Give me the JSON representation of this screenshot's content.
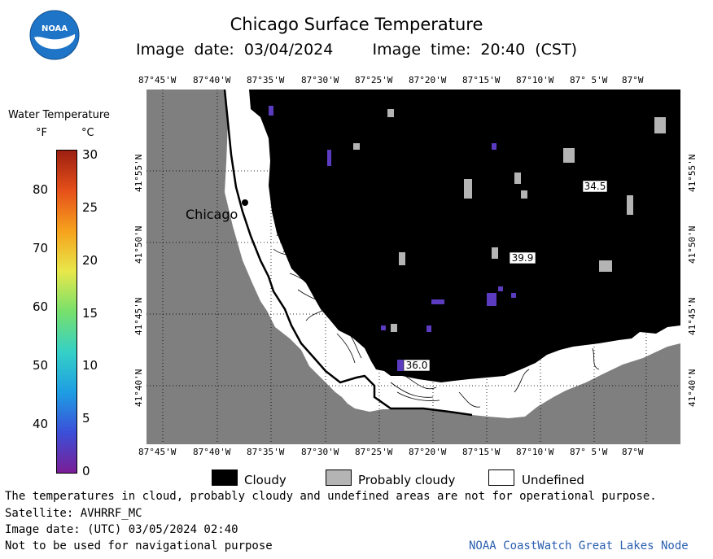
{
  "header": {
    "title": "Chicago Surface Temperature",
    "image_date": "Image date: 03/04/2024",
    "image_time": "Image time: 20:40 (CST)"
  },
  "colorbar": {
    "title": "Water Temperature",
    "unit_f": "°F",
    "unit_c": "°C",
    "f_ticks": [
      "80",
      "70",
      "60",
      "50",
      "40"
    ],
    "c_ticks": [
      "30",
      "25",
      "20",
      "15",
      "10",
      "5",
      "0"
    ],
    "f_values": [
      80,
      70,
      60,
      50,
      40
    ],
    "c_range": [
      0,
      30
    ],
    "colors": [
      "#7a1e96",
      "#3b4fd8",
      "#1d9ee3",
      "#35d0c6",
      "#77e06c",
      "#e8e84a",
      "#f6a21c",
      "#e6501a",
      "#9c1f10"
    ]
  },
  "map": {
    "lon_labels": [
      "87°45'W",
      "87°40'W",
      "87°35'W",
      "87°30'W",
      "87°25'W",
      "87°20'W",
      "87°15'W",
      "87°10'W",
      "87° 5'W",
      "87°W"
    ],
    "lat_labels": [
      "41°55'N",
      "41°50'N",
      "41°45'N",
      "41°40'N"
    ],
    "city": "Chicago",
    "temperature_labels": [
      "34.5",
      "39.9",
      "36.0"
    ],
    "land_color": "#7f7f7f",
    "cloud_color": "#000000",
    "probably_cloudy_color": "#b4b4b4",
    "undefined_color": "#ffffff"
  },
  "legend": {
    "cloudy": "Cloudy",
    "probably_cloudy": "Probably cloudy",
    "undefined": "Undefined"
  },
  "footer": {
    "disclaimer": "The temperatures in cloud, probably cloudy and undefined areas are not for operational purpose.",
    "satellite": "Satellite: AVHRRF_MC",
    "utc_date": "Image date: (UTC) 03/05/2024  02:40",
    "nav_warning": "Not to be used for navigational purpose",
    "credit": "NOAA CoastWatch Great Lakes Node",
    "credit_color": "#2b5fb0"
  }
}
